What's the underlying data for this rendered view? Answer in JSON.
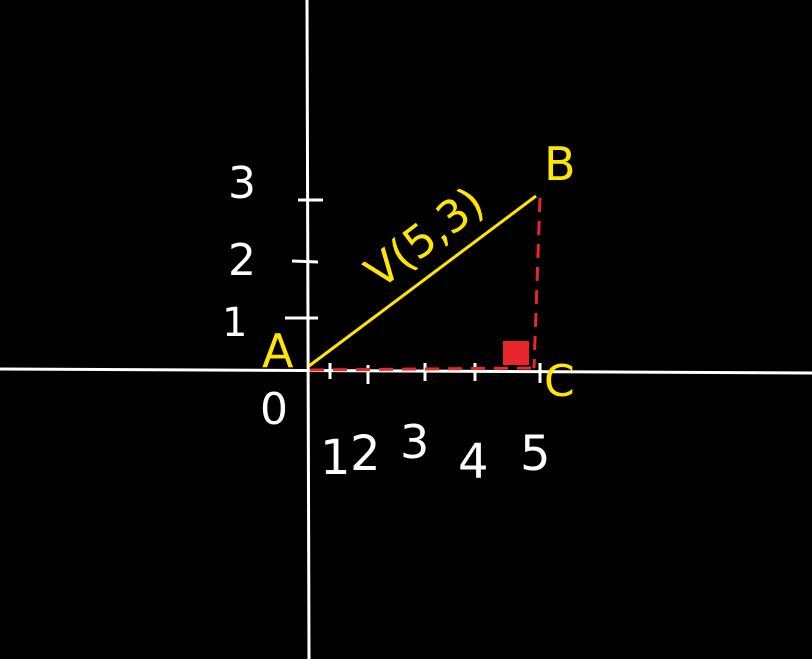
{
  "colors": {
    "background": "#000000",
    "axes": "#ffffff",
    "vector": "#ffe600",
    "projection": "#e8262b",
    "labels_white": "#ffffff",
    "labels_yellow": "#ffe600"
  },
  "points": {
    "A": "A",
    "B": "B",
    "C": "C",
    "origin": "0"
  },
  "vector_label": "V(5,3)",
  "y_ticks": [
    "1",
    "2",
    "3"
  ],
  "x_ticks": [
    "1",
    "2",
    "3",
    "4",
    "5"
  ]
}
